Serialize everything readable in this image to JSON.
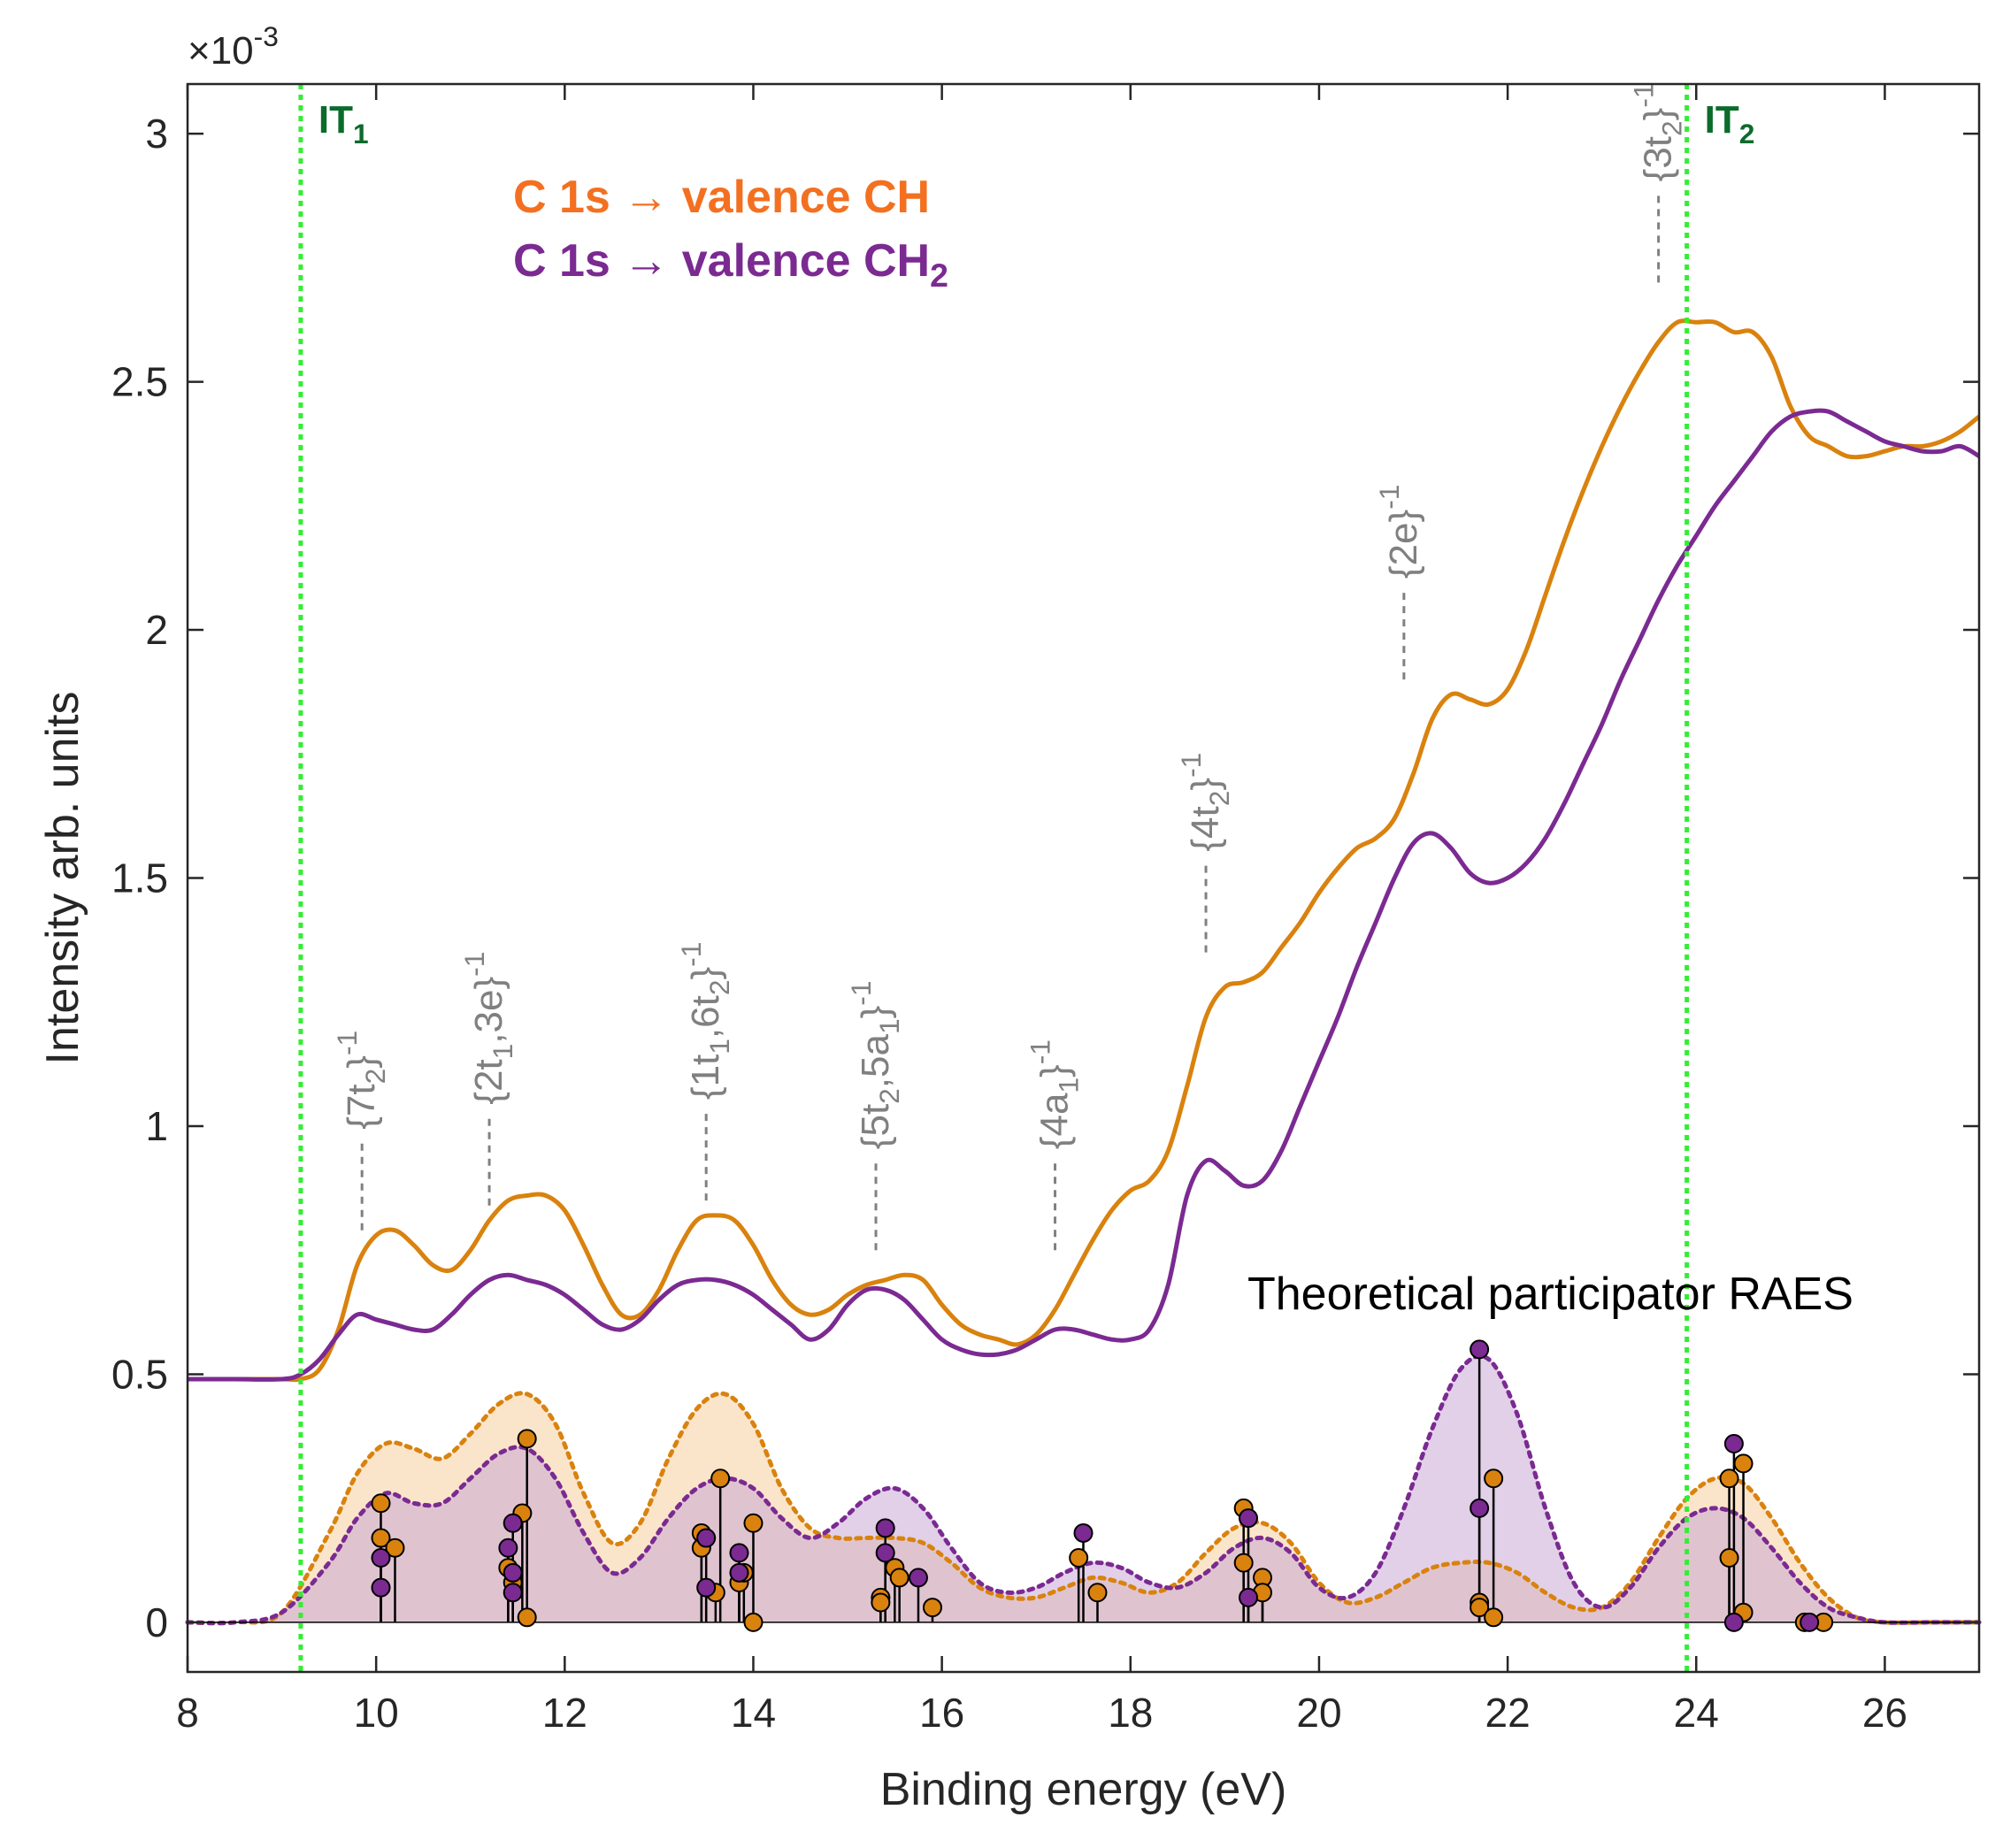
{
  "chart_data": {
    "type": "line",
    "xlabel": "Binding energy (eV)",
    "ylabel": "Intensity arb. units",
    "xlim": [
      8,
      27
    ],
    "ylim": [
      -0.1,
      3.1
    ],
    "y_exponent": {
      "base": "×10",
      "exp": "-3"
    },
    "xticks": [
      8,
      10,
      12,
      14,
      16,
      18,
      20,
      22,
      24,
      26
    ],
    "yticks": [
      0,
      0.5,
      1,
      1.5,
      2,
      2.5,
      3
    ],
    "ytick_labels": [
      "0",
      "0.5",
      "1",
      "1.5",
      "2",
      "2.5",
      "3"
    ],
    "colors": {
      "ch": "#D9820E",
      "ch2": "#7B2A92",
      "it": "#33EE33",
      "theory_ch_fill": "#F5CFA0",
      "theory_ch2_fill": "#C9A9D6"
    },
    "legend": {
      "ch": {
        "label": "C 1s → valence CH",
        "color": "#F37021"
      },
      "ch2": {
        "main": "C 1s → valence CH",
        "sub": "2",
        "color": "#7B2A92"
      }
    },
    "theory_label": "Theoretical participator RAES",
    "ionization_thresholds": [
      {
        "text": "IT",
        "sub": "1",
        "x": 9.2
      },
      {
        "text": "IT",
        "sub": "2",
        "x": 23.9
      }
    ],
    "peak_labels": [
      {
        "pre": "{7t",
        "sub": "2",
        "post": "}",
        "sup": "-1",
        "x": 9.85,
        "y_line_bottom": 0.79
      },
      {
        "pre": "{2t",
        "sub": "1",
        "post": ",3e}",
        "sup": "-1",
        "x": 11.2,
        "y_line_bottom": 0.84
      },
      {
        "pre": "{1t",
        "sub": "1",
        "post": ",6t",
        "sub2": "2",
        "post2": "}",
        "sup": "-1",
        "x": 13.5,
        "y_line_bottom": 0.85
      },
      {
        "pre": "{5t",
        "sub": "2",
        "post": ",5a",
        "sub2": "1",
        "post2": "}",
        "sup": "-1",
        "x": 15.3,
        "y_line_bottom": 0.75
      },
      {
        "pre": "{4a",
        "sub": "1",
        "post": "}",
        "sup": "-1",
        "x": 17.2,
        "y_line_bottom": 0.75
      },
      {
        "pre": "{4t",
        "sub": "2",
        "post": "}",
        "sup": "-1",
        "x": 18.8,
        "y_line_bottom": 1.35
      },
      {
        "pre": "{2e}",
        "sup": "-1",
        "x": 20.9,
        "y_line_bottom": 1.9
      },
      {
        "pre": "{3t",
        "sub": "2",
        "post": "}",
        "sup": "-1",
        "x": 23.6,
        "y_line_bottom": 2.7
      }
    ],
    "series": [
      {
        "name": "C 1s → valence CH",
        "key": "ch",
        "x": [
          8,
          8.5,
          9,
          9.2,
          9.4,
          9.6,
          9.8,
          10.0,
          10.2,
          10.4,
          10.6,
          10.8,
          11.0,
          11.2,
          11.4,
          11.6,
          11.8,
          12.0,
          12.2,
          12.4,
          12.6,
          12.8,
          13.0,
          13.2,
          13.4,
          13.6,
          13.8,
          14.0,
          14.2,
          14.4,
          14.6,
          14.8,
          15.0,
          15.2,
          15.4,
          15.6,
          15.8,
          16.0,
          16.2,
          16.4,
          16.6,
          16.8,
          17.0,
          17.2,
          17.4,
          17.6,
          17.8,
          18.0,
          18.2,
          18.4,
          18.6,
          18.8,
          19.0,
          19.2,
          19.4,
          19.6,
          19.8,
          20.0,
          20.2,
          20.4,
          20.6,
          20.8,
          21.0,
          21.2,
          21.4,
          21.6,
          21.8,
          22.0,
          22.2,
          22.4,
          22.6,
          22.8,
          23.0,
          23.2,
          23.4,
          23.6,
          23.8,
          24.0,
          24.2,
          24.4,
          24.6,
          24.8,
          25.0,
          25.2,
          25.4,
          25.6,
          25.8,
          26.0,
          26.2,
          26.4,
          26.6,
          26.8,
          27.0
        ],
        "y": [
          0.49,
          0.49,
          0.49,
          0.49,
          0.51,
          0.59,
          0.72,
          0.78,
          0.79,
          0.76,
          0.72,
          0.71,
          0.75,
          0.81,
          0.85,
          0.86,
          0.86,
          0.83,
          0.76,
          0.68,
          0.62,
          0.62,
          0.67,
          0.75,
          0.81,
          0.82,
          0.81,
          0.76,
          0.69,
          0.64,
          0.62,
          0.63,
          0.66,
          0.68,
          0.69,
          0.7,
          0.69,
          0.64,
          0.6,
          0.58,
          0.57,
          0.56,
          0.58,
          0.63,
          0.7,
          0.77,
          0.83,
          0.87,
          0.89,
          0.95,
          1.08,
          1.22,
          1.28,
          1.29,
          1.31,
          1.36,
          1.41,
          1.47,
          1.52,
          1.56,
          1.58,
          1.62,
          1.71,
          1.82,
          1.87,
          1.86,
          1.85,
          1.88,
          1.96,
          2.07,
          2.18,
          2.28,
          2.37,
          2.45,
          2.52,
          2.58,
          2.62,
          2.62,
          2.62,
          2.6,
          2.6,
          2.55,
          2.45,
          2.39,
          2.37,
          2.35,
          2.35,
          2.36,
          2.37,
          2.37,
          2.38,
          2.4,
          2.43
        ]
      },
      {
        "name": "C 1s → valence CH2",
        "key": "ch2",
        "x": [
          8,
          8.5,
          9,
          9.2,
          9.4,
          9.6,
          9.8,
          10.0,
          10.2,
          10.4,
          10.6,
          10.8,
          11.0,
          11.2,
          11.4,
          11.6,
          11.8,
          12.0,
          12.2,
          12.4,
          12.6,
          12.8,
          13.0,
          13.2,
          13.4,
          13.6,
          13.8,
          14.0,
          14.2,
          14.4,
          14.6,
          14.8,
          15.0,
          15.2,
          15.4,
          15.6,
          15.8,
          16.0,
          16.2,
          16.4,
          16.6,
          16.8,
          17.0,
          17.2,
          17.4,
          17.6,
          17.8,
          18.0,
          18.2,
          18.4,
          18.6,
          18.8,
          19.0,
          19.2,
          19.4,
          19.6,
          19.8,
          20.0,
          20.2,
          20.4,
          20.6,
          20.8,
          21.0,
          21.2,
          21.4,
          21.6,
          21.8,
          22.0,
          22.2,
          22.4,
          22.6,
          22.8,
          23.0,
          23.2,
          23.4,
          23.6,
          23.8,
          24.0,
          24.2,
          24.4,
          24.6,
          24.8,
          25.0,
          25.2,
          25.4,
          25.6,
          25.8,
          26.0,
          26.2,
          26.4,
          26.6,
          26.8,
          27.0
        ],
        "y": [
          0.49,
          0.49,
          0.49,
          0.5,
          0.53,
          0.58,
          0.62,
          0.61,
          0.6,
          0.59,
          0.59,
          0.62,
          0.66,
          0.69,
          0.7,
          0.69,
          0.68,
          0.66,
          0.63,
          0.6,
          0.59,
          0.61,
          0.65,
          0.68,
          0.69,
          0.69,
          0.68,
          0.66,
          0.63,
          0.6,
          0.57,
          0.59,
          0.64,
          0.67,
          0.67,
          0.65,
          0.61,
          0.57,
          0.55,
          0.54,
          0.54,
          0.55,
          0.57,
          0.59,
          0.59,
          0.58,
          0.57,
          0.57,
          0.59,
          0.68,
          0.86,
          0.93,
          0.91,
          0.88,
          0.89,
          0.95,
          1.04,
          1.13,
          1.22,
          1.32,
          1.41,
          1.5,
          1.57,
          1.59,
          1.56,
          1.51,
          1.49,
          1.5,
          1.53,
          1.58,
          1.65,
          1.73,
          1.81,
          1.9,
          1.98,
          2.06,
          2.13,
          2.19,
          2.25,
          2.3,
          2.35,
          2.4,
          2.43,
          2.44,
          2.44,
          2.42,
          2.4,
          2.38,
          2.37,
          2.36,
          2.36,
          2.37,
          2.35
        ]
      }
    ],
    "theory_envelopes": [
      {
        "name": "Theoretical CH",
        "key": "ch",
        "x": [
          8,
          8.5,
          9,
          9.5,
          9.8,
          10.1,
          10.4,
          10.7,
          11.0,
          11.3,
          11.6,
          11.9,
          12.2,
          12.5,
          12.8,
          13.1,
          13.4,
          13.7,
          14.0,
          14.3,
          14.6,
          14.9,
          15.2,
          15.5,
          15.8,
          16.1,
          16.4,
          16.7,
          17.0,
          17.3,
          17.6,
          17.9,
          18.2,
          18.5,
          18.8,
          19.1,
          19.4,
          19.7,
          20.0,
          20.3,
          20.6,
          20.9,
          21.2,
          21.5,
          21.8,
          22.1,
          22.4,
          22.7,
          23.0,
          23.3,
          23.6,
          23.9,
          24.2,
          24.5,
          24.8,
          25.1,
          25.4,
          25.7,
          26.0,
          26.5,
          27.0
        ],
        "y": [
          0.0,
          0.0,
          0.02,
          0.18,
          0.3,
          0.36,
          0.35,
          0.33,
          0.38,
          0.44,
          0.46,
          0.4,
          0.26,
          0.16,
          0.2,
          0.33,
          0.43,
          0.46,
          0.4,
          0.27,
          0.19,
          0.17,
          0.17,
          0.17,
          0.16,
          0.12,
          0.07,
          0.05,
          0.05,
          0.07,
          0.09,
          0.08,
          0.06,
          0.08,
          0.14,
          0.19,
          0.2,
          0.16,
          0.08,
          0.04,
          0.05,
          0.08,
          0.11,
          0.12,
          0.12,
          0.1,
          0.06,
          0.03,
          0.03,
          0.08,
          0.17,
          0.25,
          0.29,
          0.28,
          0.21,
          0.12,
          0.05,
          0.01,
          0.0,
          0.0,
          0.0
        ]
      },
      {
        "name": "Theoretical CH2",
        "key": "ch2",
        "x": [
          8,
          8.5,
          9,
          9.5,
          9.8,
          10.1,
          10.4,
          10.7,
          11.0,
          11.3,
          11.6,
          11.9,
          12.2,
          12.5,
          12.8,
          13.1,
          13.4,
          13.7,
          14.0,
          14.3,
          14.6,
          14.9,
          15.2,
          15.5,
          15.8,
          16.1,
          16.4,
          16.7,
          17.0,
          17.3,
          17.6,
          17.9,
          18.2,
          18.5,
          18.8,
          19.1,
          19.4,
          19.7,
          20.0,
          20.3,
          20.6,
          20.9,
          21.2,
          21.5,
          21.8,
          22.1,
          22.4,
          22.7,
          23.0,
          23.3,
          23.6,
          23.9,
          24.2,
          24.5,
          24.8,
          25.1,
          25.4,
          25.7,
          26.0,
          26.5,
          27.0
        ],
        "y": [
          0.0,
          0.0,
          0.02,
          0.12,
          0.21,
          0.26,
          0.24,
          0.24,
          0.29,
          0.34,
          0.35,
          0.29,
          0.18,
          0.1,
          0.13,
          0.21,
          0.27,
          0.29,
          0.27,
          0.21,
          0.17,
          0.2,
          0.25,
          0.27,
          0.23,
          0.15,
          0.08,
          0.06,
          0.07,
          0.1,
          0.12,
          0.11,
          0.08,
          0.07,
          0.1,
          0.15,
          0.17,
          0.14,
          0.07,
          0.05,
          0.1,
          0.23,
          0.39,
          0.51,
          0.53,
          0.42,
          0.23,
          0.08,
          0.03,
          0.07,
          0.15,
          0.21,
          0.23,
          0.21,
          0.15,
          0.08,
          0.03,
          0.01,
          0.0,
          0.0,
          0.0
        ]
      }
    ],
    "theory_sticks": {
      "ch": [
        [
          10.05,
          0.24
        ],
        [
          10.05,
          0.17
        ],
        [
          10.2,
          0.15
        ],
        [
          11.4,
          0.11
        ],
        [
          11.45,
          0.08
        ],
        [
          11.55,
          0.22
        ],
        [
          11.6,
          0.37
        ],
        [
          11.6,
          0.01
        ],
        [
          13.45,
          0.18
        ],
        [
          13.45,
          0.15
        ],
        [
          13.6,
          0.06
        ],
        [
          13.65,
          0.29
        ],
        [
          13.85,
          0.08
        ],
        [
          13.9,
          0.1
        ],
        [
          14.0,
          0.2
        ],
        [
          14.0,
          0.0
        ],
        [
          15.35,
          0.05
        ],
        [
          15.35,
          0.04
        ],
        [
          15.5,
          0.11
        ],
        [
          15.55,
          0.09
        ],
        [
          15.9,
          0.03
        ],
        [
          17.45,
          0.13
        ],
        [
          17.65,
          0.06
        ],
        [
          19.2,
          0.23
        ],
        [
          19.2,
          0.12
        ],
        [
          19.4,
          0.09
        ],
        [
          19.4,
          0.06
        ],
        [
          21.7,
          0.04
        ],
        [
          21.7,
          0.03
        ],
        [
          21.85,
          0.29
        ],
        [
          21.85,
          0.01
        ],
        [
          24.35,
          0.29
        ],
        [
          24.35,
          0.13
        ],
        [
          24.5,
          0.32
        ],
        [
          24.5,
          0.02
        ],
        [
          25.15,
          0.0
        ],
        [
          25.35,
          0.0
        ]
      ],
      "ch2": [
        [
          10.05,
          0.13
        ],
        [
          10.05,
          0.07
        ],
        [
          11.4,
          0.15
        ],
        [
          11.45,
          0.2
        ],
        [
          11.45,
          0.06
        ],
        [
          11.45,
          0.1
        ],
        [
          13.5,
          0.17
        ],
        [
          13.5,
          0.07
        ],
        [
          13.85,
          0.14
        ],
        [
          13.85,
          0.1
        ],
        [
          15.4,
          0.19
        ],
        [
          15.4,
          0.14
        ],
        [
          15.75,
          0.09
        ],
        [
          17.5,
          0.18
        ],
        [
          19.25,
          0.21
        ],
        [
          19.25,
          0.05
        ],
        [
          21.7,
          0.55
        ],
        [
          21.7,
          0.23
        ],
        [
          24.4,
          0.36
        ],
        [
          24.4,
          0.0
        ],
        [
          25.2,
          0.0
        ]
      ]
    }
  }
}
